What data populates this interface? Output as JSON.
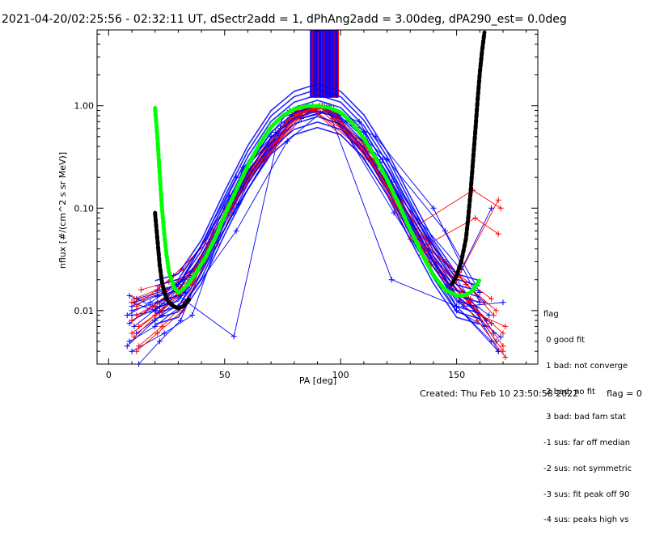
{
  "title": "2021-04-20/02:25:56 - 02:32:11 UT, dSectr2add = 1, dPhAng2add = 3.00deg, dPA290_est=    0.0deg",
  "footer": {
    "created": "Created: Thu Feb 10 23:50:58 2022",
    "flag": "flag = 0"
  },
  "legend": {
    "heading": "flag",
    "items": [
      " 0 good fit",
      " 1 bad: not converge",
      " 2 bad: no fit",
      " 3 bad: bad fam stat",
      "-1 sus: far off median",
      "-2 sus: not symmetric",
      "-3 sus: fit peak off 90",
      "-4 sus: peaks high vs"
    ]
  },
  "colors": {
    "blue": "#0000ff",
    "red": "#ff0000",
    "green": "#00ff00",
    "black": "#000000"
  },
  "chart_data": {
    "type": "line",
    "xlabel": "PA [deg]",
    "ylabel": "nflux [#/(cm^2 s sr MeV)]",
    "xlim": [
      -5,
      185
    ],
    "ylim": [
      0.003,
      5.5
    ],
    "yscale": "log",
    "x_ticks": [
      0,
      50,
      100,
      150
    ],
    "x_ticklabels": [
      "0",
      "50",
      "100",
      "150"
    ],
    "y_ticks": [
      0.01,
      0.1,
      1.0
    ],
    "y_ticklabels": [
      "0.01",
      "0.10",
      "1.00"
    ],
    "legend_position": "right-bottom",
    "series": [
      {
        "color": "green",
        "style": "dotted-thick",
        "x": [
          20,
          21,
          22,
          23,
          24,
          25,
          26,
          28,
          30,
          32,
          35,
          38,
          42,
          46,
          50,
          55,
          60,
          65,
          70,
          75,
          80,
          85,
          90,
          95,
          100,
          105,
          110,
          115,
          120,
          125,
          130,
          135,
          140,
          145,
          150,
          153,
          156,
          158,
          160
        ],
        "y": [
          0.95,
          0.5,
          0.22,
          0.1,
          0.055,
          0.034,
          0.024,
          0.017,
          0.015,
          0.016,
          0.019,
          0.024,
          0.034,
          0.052,
          0.085,
          0.15,
          0.26,
          0.42,
          0.62,
          0.8,
          0.93,
          0.99,
          0.995,
          0.96,
          0.86,
          0.68,
          0.48,
          0.31,
          0.19,
          0.11,
          0.062,
          0.036,
          0.022,
          0.016,
          0.014,
          0.014,
          0.015,
          0.017,
          0.02
        ]
      },
      {
        "color": "black",
        "style": "dotted-thick",
        "x": [
          20,
          21,
          22,
          23,
          24,
          25,
          26,
          28,
          30,
          32,
          35
        ],
        "y": [
          0.09,
          0.05,
          0.028,
          0.019,
          0.015,
          0.013,
          0.012,
          0.011,
          0.0105,
          0.011,
          0.013
        ]
      },
      {
        "color": "black",
        "style": "dotted-thick",
        "x": [
          148,
          150,
          152,
          154,
          155,
          156,
          157,
          158,
          159,
          160,
          161,
          162
        ],
        "y": [
          0.018,
          0.022,
          0.03,
          0.05,
          0.08,
          0.14,
          0.28,
          0.55,
          1.1,
          2.1,
          3.5,
          5.2
        ]
      }
    ],
    "marked_lines": [
      {
        "color": "blue",
        "x": [
          10,
          20,
          30,
          54,
          75,
          94,
          122,
          150,
          165
        ],
        "y": [
          0.012,
          0.01,
          0.014,
          0.0056,
          0.78,
          1.0,
          0.02,
          0.011,
          0.005
        ]
      },
      {
        "color": "blue",
        "x": [
          10,
          22,
          32,
          55,
          78,
          92,
          118,
          145,
          162
        ],
        "y": [
          0.008,
          0.011,
          0.02,
          0.2,
          0.9,
          1.0,
          0.3,
          0.03,
          0.012
        ]
      },
      {
        "color": "blue",
        "x": [
          9,
          20,
          33,
          55,
          77,
          95,
          120,
          150,
          168
        ],
        "y": [
          0.005,
          0.007,
          0.012,
          0.06,
          0.45,
          1.0,
          0.2,
          0.011,
          0.004
        ]
      },
      {
        "color": "blue",
        "x": [
          12,
          25,
          40,
          60,
          80,
          93,
          125,
          152,
          165
        ],
        "y": [
          0.013,
          0.016,
          0.03,
          0.2,
          0.8,
          0.97,
          0.13,
          0.025,
          0.1
        ]
      },
      {
        "color": "blue",
        "x": [
          10,
          24,
          36,
          58,
          82,
          96,
          115,
          140,
          160
        ],
        "y": [
          0.004,
          0.006,
          0.009,
          0.25,
          0.95,
          0.85,
          0.5,
          0.1,
          0.012
        ]
      },
      {
        "color": "blue",
        "x": [
          8,
          18,
          30,
          50,
          72,
          90,
          110,
          135,
          158
        ],
        "y": [
          0.009,
          0.012,
          0.018,
          0.1,
          0.55,
          0.98,
          0.55,
          0.04,
          0.01
        ]
      },
      {
        "color": "blue",
        "x": [
          10,
          21,
          35,
          57,
          79,
          97,
          121,
          148,
          163
        ],
        "y": [
          0.011,
          0.014,
          0.022,
          0.17,
          0.72,
          0.93,
          0.15,
          0.015,
          0.008
        ]
      },
      {
        "color": "blue",
        "x": [
          13,
          22,
          31,
          48,
          70,
          88,
          108,
          138,
          166
        ],
        "y": [
          0.003,
          0.005,
          0.008,
          0.07,
          0.5,
          1.0,
          0.7,
          0.05,
          0.006
        ]
      },
      {
        "color": "blue",
        "x": [
          11,
          26,
          39,
          61,
          84,
          99,
          124,
          153,
          170
        ],
        "y": [
          0.007,
          0.013,
          0.028,
          0.28,
          0.9,
          0.8,
          0.12,
          0.011,
          0.012
        ]
      },
      {
        "color": "blue",
        "x": [
          9,
          19,
          29,
          52,
          76,
          93,
          119,
          146,
          164
        ],
        "y": [
          0.014,
          0.011,
          0.016,
          0.13,
          0.68,
          1.0,
          0.22,
          0.018,
          0.009
        ]
      },
      {
        "color": "blue",
        "x": [
          12,
          23,
          34,
          56,
          80,
          92,
          122,
          149,
          167
        ],
        "y": [
          0.006,
          0.009,
          0.013,
          0.11,
          0.85,
          0.99,
          0.18,
          0.02,
          0.005
        ]
      },
      {
        "color": "blue",
        "x": [
          10,
          21,
          30,
          54,
          78,
          96,
          123,
          150,
          162
        ],
        "y": [
          0.01,
          0.012,
          0.011,
          0.09,
          0.7,
          0.92,
          0.09,
          0.01,
          0.007
        ]
      },
      {
        "color": "blue",
        "x": [
          8,
          20,
          33,
          59,
          81,
          95,
          127,
          155,
          168
        ],
        "y": [
          0.0045,
          0.008,
          0.015,
          0.22,
          0.88,
          0.95,
          0.08,
          0.013,
          0.004
        ]
      },
      {
        "color": "blue",
        "x": [
          11,
          24,
          37,
          60,
          83,
          97,
          120,
          145,
          160
        ],
        "y": [
          0.012,
          0.015,
          0.025,
          0.19,
          0.75,
          0.9,
          0.3,
          0.06,
          0.015
        ]
      },
      {
        "color": "blue",
        "x": [
          10,
          22,
          31,
          53,
          74,
          91,
          117,
          147,
          165
        ],
        "y": [
          0.009,
          0.01,
          0.014,
          0.1,
          0.6,
          1.0,
          0.28,
          0.016,
          0.0075
        ]
      },
      {
        "color": "blue",
        "x": [
          9,
          25,
          38,
          57,
          79,
          94,
          121,
          151,
          169
        ],
        "y": [
          0.0075,
          0.014,
          0.026,
          0.16,
          0.82,
          0.97,
          0.17,
          0.012,
          0.0055
        ]
      },
      {
        "color": "red",
        "x": [
          12,
          22,
          32,
          45,
          60,
          80,
          90,
          110,
          130,
          150,
          168
        ],
        "y": [
          0.011,
          0.017,
          0.025,
          0.06,
          0.26,
          0.85,
          0.95,
          0.4,
          0.05,
          0.02,
          0.12
        ]
      },
      {
        "color": "red",
        "x": [
          10,
          20,
          30,
          48,
          62,
          82,
          92,
          112,
          135,
          155,
          170
        ],
        "y": [
          0.006,
          0.009,
          0.015,
          0.07,
          0.22,
          0.9,
          0.98,
          0.3,
          0.035,
          0.012,
          0.006
        ]
      },
      {
        "color": "red",
        "x": [
          11,
          21,
          28,
          44,
          58,
          78,
          88,
          115,
          138,
          158,
          168
        ],
        "y": [
          0.013,
          0.016,
          0.022,
          0.05,
          0.2,
          0.75,
          0.92,
          0.25,
          0.045,
          0.08,
          0.056
        ]
      },
      {
        "color": "red",
        "x": [
          13,
          23,
          33,
          50,
          64,
          84,
          94,
          113,
          133,
          153,
          170
        ],
        "y": [
          0.0045,
          0.007,
          0.012,
          0.09,
          0.25,
          0.93,
          0.96,
          0.36,
          0.06,
          0.015,
          0.004
        ]
      },
      {
        "color": "red",
        "x": [
          12,
          24,
          35,
          52,
          66,
          86,
          96,
          118,
          140,
          160,
          171
        ],
        "y": [
          0.009,
          0.013,
          0.02,
          0.1,
          0.3,
          0.95,
          0.93,
          0.2,
          0.03,
          0.009,
          0.007
        ]
      },
      {
        "color": "red",
        "x": [
          10,
          20,
          31,
          46,
          61,
          81,
          91,
          111,
          131,
          151,
          166
        ],
        "y": [
          0.008,
          0.011,
          0.017,
          0.055,
          0.21,
          0.82,
          0.99,
          0.38,
          0.055,
          0.022,
          0.009
        ]
      },
      {
        "color": "red",
        "x": [
          11,
          22,
          36,
          49,
          63,
          83,
          93,
          116,
          136,
          156,
          170
        ],
        "y": [
          0.0055,
          0.0095,
          0.018,
          0.08,
          0.27,
          0.9,
          0.97,
          0.27,
          0.04,
          0.013,
          0.0045
        ]
      },
      {
        "color": "red",
        "x": [
          14,
          26,
          34,
          47,
          59,
          79,
          89,
          114,
          134,
          157,
          169
        ],
        "y": [
          0.016,
          0.019,
          0.021,
          0.045,
          0.18,
          0.7,
          0.9,
          0.3,
          0.07,
          0.15,
          0.1
        ]
      },
      {
        "color": "red",
        "x": [
          12,
          21,
          32,
          51,
          65,
          85,
          95,
          119,
          139,
          159,
          171
        ],
        "y": [
          0.004,
          0.006,
          0.01,
          0.085,
          0.26,
          0.92,
          0.94,
          0.18,
          0.028,
          0.008,
          0.0035
        ]
      },
      {
        "color": "red",
        "x": [
          10,
          25,
          37,
          53,
          67,
          87,
          97,
          117,
          137,
          154,
          167
        ],
        "y": [
          0.012,
          0.016,
          0.026,
          0.11,
          0.29,
          0.96,
          0.91,
          0.22,
          0.05,
          0.018,
          0.01
        ]
      },
      {
        "color": "red",
        "x": [
          13,
          23,
          29,
          43,
          57,
          77,
          87,
          109,
          129,
          149,
          165
        ],
        "y": [
          0.007,
          0.01,
          0.014,
          0.045,
          0.17,
          0.72,
          0.93,
          0.45,
          0.065,
          0.024,
          0.013
        ]
      }
    ],
    "vertical_spikes": {
      "x_range": [
        87,
        99
      ],
      "y_range": [
        1.2,
        5.5
      ],
      "count": 60
    }
  }
}
